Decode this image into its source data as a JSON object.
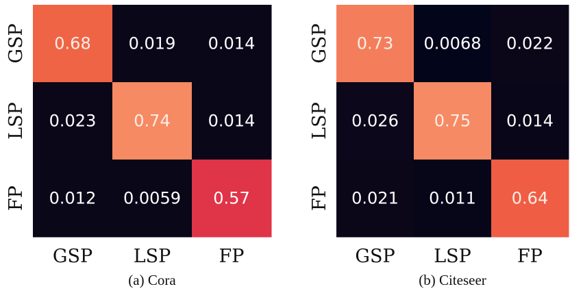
{
  "chart_data": [
    {
      "type": "heatmap",
      "caption": "(a) Cora",
      "rows": [
        "GSP",
        "LSP",
        "FP"
      ],
      "columns": [
        "GSP",
        "LSP",
        "FP"
      ],
      "values": [
        [
          0.68,
          0.019,
          0.014
        ],
        [
          0.023,
          0.74,
          0.014
        ],
        [
          0.012,
          0.0059,
          0.57
        ]
      ],
      "labels": [
        [
          "0.68",
          "0.019",
          "0.014"
        ],
        [
          "0.023",
          "0.74",
          "0.014"
        ],
        [
          "0.012",
          "0.0059",
          "0.57"
        ]
      ],
      "colors": [
        [
          "#ef6445",
          "#0a0719",
          "#0a0719"
        ],
        [
          "#0b0719",
          "#f58a63",
          "#0a0719"
        ],
        [
          "#0a0719",
          "#090718",
          "#e03448"
        ]
      ]
    },
    {
      "type": "heatmap",
      "caption": "(b) Citeseer",
      "rows": [
        "GSP",
        "LSP",
        "FP"
      ],
      "columns": [
        "GSP",
        "LSP",
        "FP"
      ],
      "values": [
        [
          0.73,
          0.0068,
          0.022
        ],
        [
          0.026,
          0.75,
          0.014
        ],
        [
          0.021,
          0.011,
          0.64
        ]
      ],
      "labels": [
        [
          "0.73",
          "0.0068",
          "0.022"
        ],
        [
          "0.026",
          "0.75",
          "0.014"
        ],
        [
          "0.021",
          "0.011",
          "0.64"
        ]
      ],
      "colors": [
        [
          "#f47e5c",
          "#03051a",
          "#0b0719"
        ],
        [
          "#0c071a",
          "#f68a64",
          "#080618"
        ],
        [
          "#0b0719",
          "#070618",
          "#ef5d44"
        ]
      ]
    }
  ]
}
